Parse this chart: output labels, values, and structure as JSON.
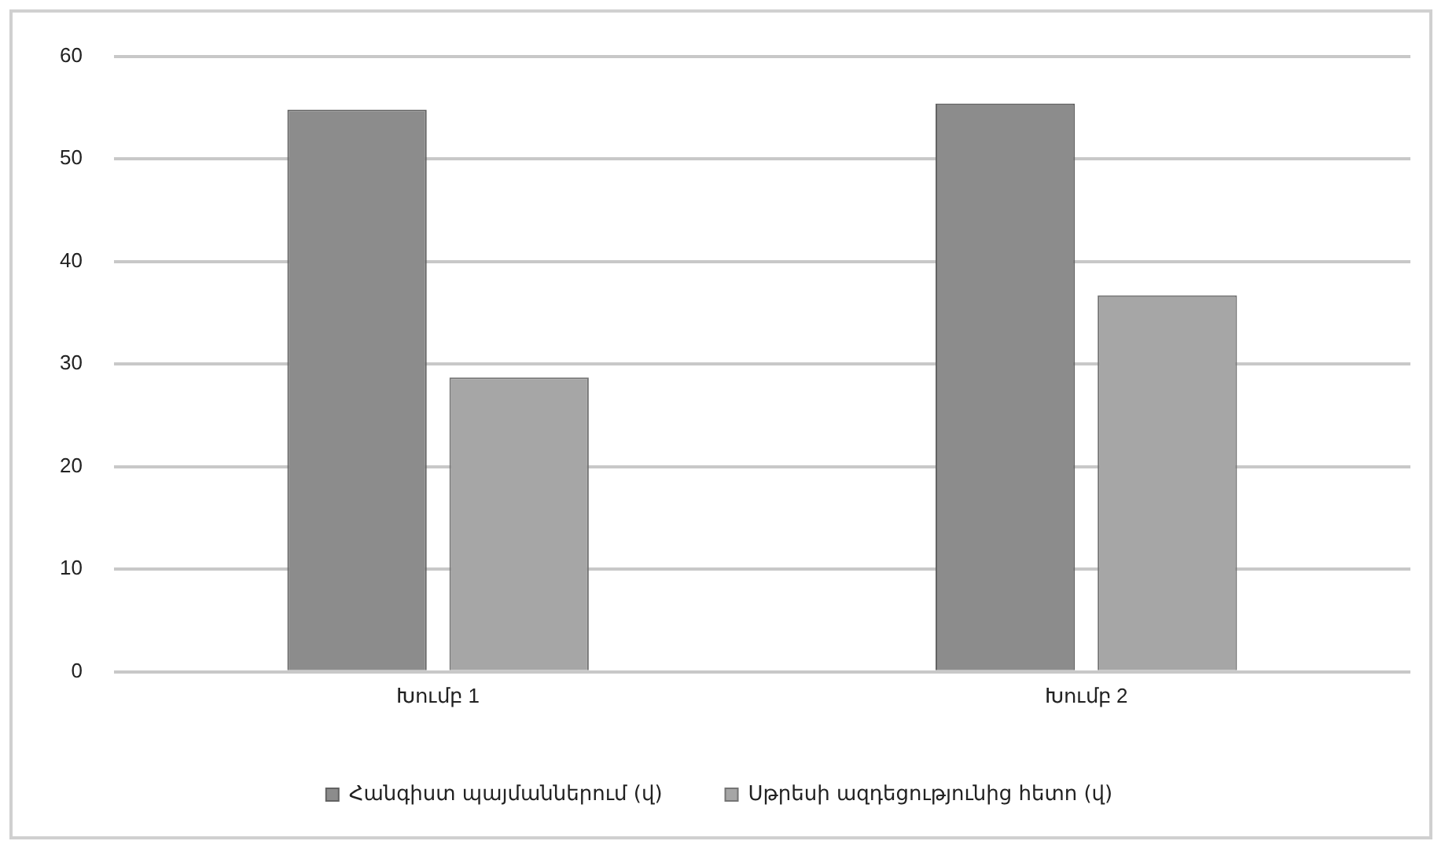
{
  "chart_data": {
    "type": "bar",
    "categories": [
      "Խումբ 1",
      "Խումբ 2"
    ],
    "series": [
      {
        "name": "Հանգիստ պայմաններում (վ)",
        "color": "#8c8c8c",
        "values": [
          54.8,
          55.4
        ]
      },
      {
        "name": "Սթրեսի ազդեցությունից հետո (վ)",
        "color": "#a6a6a6",
        "values": [
          28.7,
          36.7
        ]
      }
    ],
    "ylim": [
      0,
      60
    ],
    "yticks": [
      0,
      10,
      20,
      30,
      40,
      50,
      60
    ],
    "grid": "y",
    "legend": "bottom"
  }
}
